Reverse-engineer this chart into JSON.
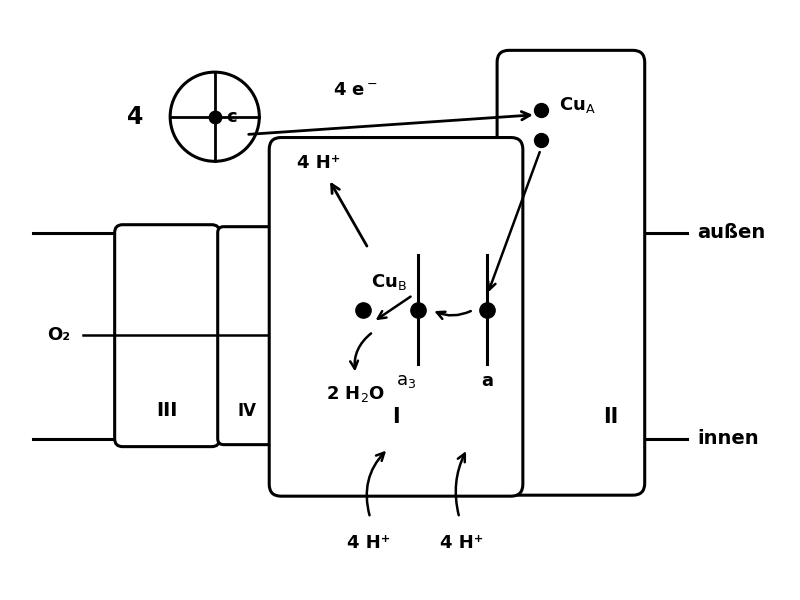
{
  "bg_color": "#ffffff",
  "line_color": "#000000",
  "außen_label": "außen",
  "innen_label": "innen",
  "o2_label": "O₂",
  "cub_label": "CuB",
  "cua_label": "CuA",
  "a3_label": "a₃",
  "a_label": "a",
  "h_plus_top": "4 H⁺",
  "h_plus_bottom_left": "4 H⁺",
  "h_plus_bottom_right": "4 H⁺",
  "h2o_label": "2 H₂O",
  "electron_label": "4 e⁻",
  "cyt_c_label": "c",
  "four_label": "4"
}
